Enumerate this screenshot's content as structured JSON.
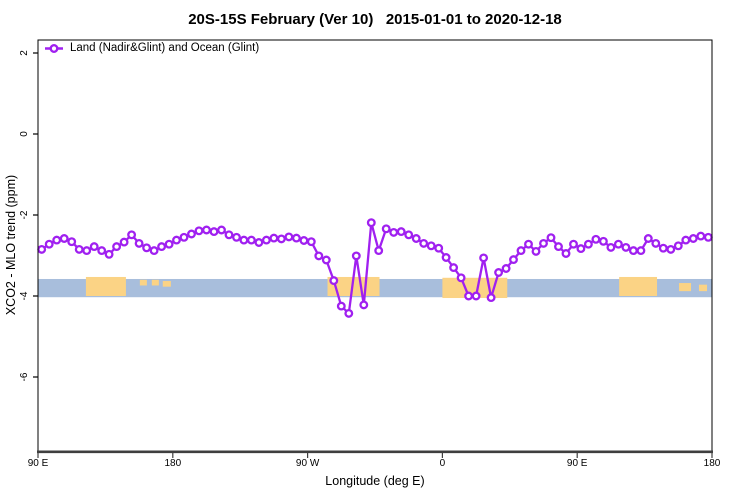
{
  "title": "20S-15S February (Ver 10)   2015-01-01 to 2020-12-18",
  "legend": {
    "label": "Land (Nadir&Glint) and Ocean (Glint)",
    "position": "top-left"
  },
  "colors": {
    "series_purple": "#A020F0",
    "marker_fill": "#ffffff",
    "reference_band_blue": "#A8BEDC",
    "highlight_orange": "#FBD385",
    "axis_line_dark": "#3f3f3f",
    "box_black": "#000000"
  },
  "chart_data": {
    "type": "line",
    "title": "20S-15S February (Ver 10)   2015-01-01 to 2020-12-18",
    "xlabel": "Longitude (deg E)",
    "ylabel": "XCO2 - MLO trend (ppm)",
    "grid": false,
    "legend_position": "top-left-inside",
    "x_axis": {
      "note": "longitude axis wraps: 90E to 180 to 90W to 0 to 90E to 180 (450 deg span)",
      "range_deg": [
        90,
        540
      ],
      "ticks_deg": [
        90,
        180,
        270,
        360,
        450,
        540
      ],
      "tick_labels": [
        "90 E",
        "180",
        "90 W",
        "0",
        "90 E",
        "180"
      ]
    },
    "y_axis": {
      "range": [
        -7.83,
        2.32
      ],
      "ticks": [
        2,
        0,
        -2,
        -4,
        -6
      ],
      "tick_labels": [
        "2",
        "0",
        "-2",
        "-4",
        "-6"
      ]
    },
    "reference_band": {
      "color": "#A8BEDC",
      "deg_from": 90,
      "deg_to": 540,
      "ppm_top": -3.58,
      "ppm_bottom": -4.03
    },
    "highlight_patches": [
      {
        "deg": [
          122.0,
          148.7
        ],
        "ppm": [
          -3.53,
          -4.0
        ]
      },
      {
        "deg": [
          158.0,
          162.7
        ],
        "ppm": [
          -3.6,
          -3.74
        ]
      },
      {
        "deg": [
          166.0,
          170.7
        ],
        "ppm": [
          -3.6,
          -3.74
        ]
      },
      {
        "deg": [
          173.3,
          178.7
        ],
        "ppm": [
          -3.63,
          -3.77
        ]
      },
      {
        "deg": [
          283.3,
          318.0
        ],
        "ppm": [
          -3.53,
          -4.0
        ]
      },
      {
        "deg": [
          360.0,
          403.3
        ],
        "ppm": [
          -3.55,
          -4.05
        ]
      },
      {
        "deg": [
          478.0,
          503.3
        ],
        "ppm": [
          -3.53,
          -4.0
        ]
      },
      {
        "deg": [
          518.0,
          526.0
        ],
        "ppm": [
          -3.68,
          -3.88
        ]
      },
      {
        "deg": [
          531.3,
          536.7
        ],
        "ppm": [
          -3.72,
          -3.88
        ]
      }
    ],
    "series": [
      {
        "name": "Land (Nadir&Glint) and Ocean (Glint)",
        "color": "#A020F0",
        "marker": "open-circle",
        "x_deg": [
          92.5,
          97.5,
          102.5,
          107.5,
          112.5,
          117.5,
          122.5,
          127.5,
          132.5,
          137.5,
          142.5,
          147.5,
          152.5,
          157.5,
          162.5,
          167.5,
          172.5,
          177.5,
          182.5,
          187.5,
          192.5,
          197.5,
          202.5,
          207.5,
          212.5,
          217.5,
          222.5,
          227.5,
          232.5,
          237.5,
          242.5,
          247.5,
          252.5,
          257.5,
          262.5,
          267.5,
          272.5,
          277.5,
          282.5,
          287.5,
          292.5,
          297.5,
          302.5,
          307.5,
          312.5,
          317.5,
          322.5,
          327.5,
          332.5,
          337.5,
          342.5,
          347.5,
          352.5,
          357.5,
          362.5,
          367.5,
          372.5,
          377.5,
          382.5,
          387.5,
          392.5,
          397.5,
          402.5,
          407.5,
          412.5,
          417.5,
          422.5,
          427.5,
          432.5,
          437.5,
          442.5,
          447.5,
          452.5,
          457.5,
          462.5,
          467.5,
          472.5,
          477.5,
          482.5,
          487.5,
          492.5,
          497.5,
          502.5,
          507.5,
          512.5,
          517.5,
          522.5,
          527.5,
          532.5,
          537.5
        ],
        "y_ppm": [
          -2.85,
          -2.72,
          -2.62,
          -2.58,
          -2.66,
          -2.85,
          -2.88,
          -2.78,
          -2.88,
          -2.97,
          -2.78,
          -2.67,
          -2.49,
          -2.7,
          -2.81,
          -2.88,
          -2.78,
          -2.72,
          -2.62,
          -2.55,
          -2.47,
          -2.39,
          -2.37,
          -2.41,
          -2.37,
          -2.49,
          -2.55,
          -2.62,
          -2.62,
          -2.68,
          -2.62,
          -2.57,
          -2.59,
          -2.54,
          -2.57,
          -2.63,
          -2.66,
          -3.01,
          -3.11,
          -3.62,
          -4.25,
          -4.43,
          -3.01,
          -4.22,
          -2.19,
          -2.88,
          -2.34,
          -2.43,
          -2.41,
          -2.49,
          -2.58,
          -2.7,
          -2.76,
          -2.82,
          -3.05,
          -3.3,
          -3.55,
          -4.0,
          -4.0,
          -3.06,
          -4.04,
          -3.42,
          -3.32,
          -3.1,
          -2.88,
          -2.72,
          -2.9,
          -2.7,
          -2.56,
          -2.78,
          -2.95,
          -2.72,
          -2.83,
          -2.72,
          -2.6,
          -2.65,
          -2.8,
          -2.72,
          -2.8,
          -2.88,
          -2.88,
          -2.58,
          -2.7,
          -2.82,
          -2.85,
          -2.76,
          -2.62,
          -2.58,
          -2.52,
          -2.55
        ]
      }
    ]
  }
}
